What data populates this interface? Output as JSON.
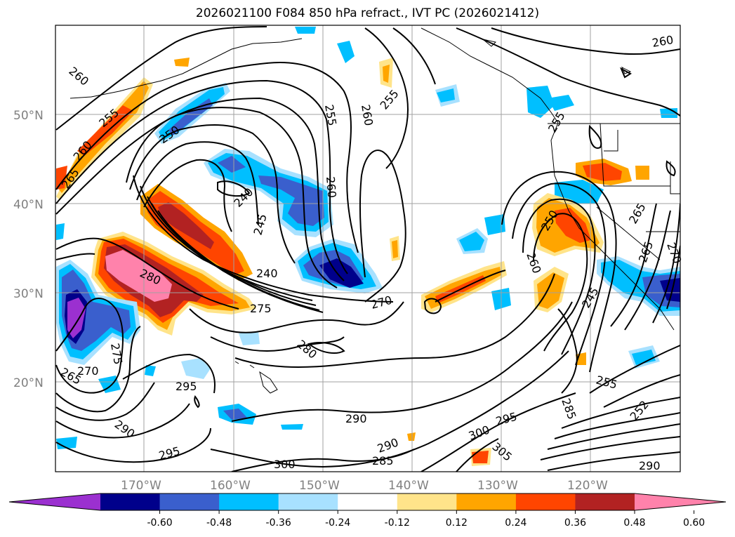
{
  "title": "2026021100 F084 850 hPa refract., IVT PC (2026021412)",
  "lat_labels": [
    "50°N",
    "40°N",
    "30°N",
    "20°N"
  ],
  "lon_labels": [
    "170°W",
    "160°W",
    "150°W",
    "140°W",
    "130°W",
    "120°W"
  ],
  "contour_labels": [
    "260",
    "255",
    "260",
    "265",
    "250",
    "240",
    "245",
    "255",
    "260",
    "255",
    "260",
    "240",
    "280",
    "275",
    "270",
    "280",
    "295",
    "270",
    "265",
    "275",
    "290",
    "295",
    "300",
    "290",
    "290",
    "285",
    "300",
    "295",
    "305",
    "285",
    "255",
    "260",
    "250",
    "265",
    "255",
    "245",
    "252",
    "290",
    "260",
    "270",
    "265"
  ],
  "colorbar": {
    "colors": [
      "#9b30d0",
      "#00008b",
      "#3a5fcd",
      "#00bfff",
      "#a8e1ff",
      "#ffffff",
      "#ffe48a",
      "#ffa500",
      "#ff4500",
      "#b22222",
      "#ff82ab"
    ],
    "ticks": [
      "-0.60",
      "-0.48",
      "-0.36",
      "-0.24",
      "-0.12",
      "0.12",
      "0.24",
      "0.36",
      "0.48",
      "0.60"
    ]
  }
}
